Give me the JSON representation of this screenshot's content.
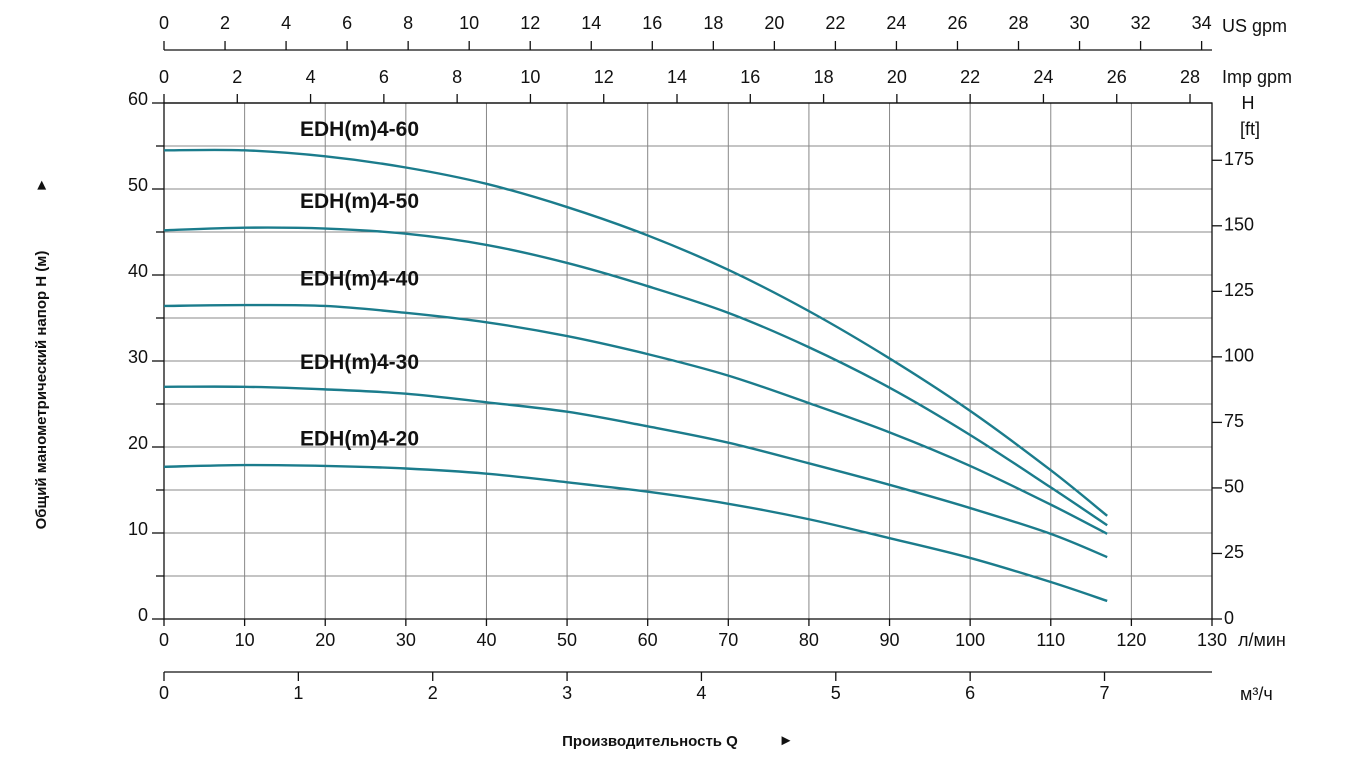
{
  "chart_data": {
    "type": "line",
    "xlabel": "Производительность Q",
    "ylabel": "Общий манометрический напор H (м)",
    "xunit": "л/мин",
    "xlim": [
      0,
      130
    ],
    "xticks": [
      0,
      10,
      20,
      30,
      40,
      50,
      60,
      70,
      80,
      90,
      100,
      110,
      120,
      130
    ],
    "ylim": [
      0,
      60
    ],
    "yticks": [
      0,
      10,
      20,
      30,
      40,
      50,
      60
    ],
    "y_minor_ticks": [
      5,
      15,
      25,
      35,
      45,
      55
    ],
    "grid": true,
    "y2label": "H",
    "y2unit": "[ft]",
    "y2lim": [
      0,
      196.85
    ],
    "y2ticks": [
      0,
      25,
      50,
      75,
      100,
      125,
      150,
      175
    ],
    "x_axes": [
      {
        "label": "US gpm",
        "lim": [
          0,
          34.34
        ],
        "ticks": [
          0,
          2,
          4,
          6,
          8,
          10,
          12,
          14,
          16,
          18,
          20,
          22,
          24,
          26,
          28,
          30,
          32,
          34
        ]
      },
      {
        "label": "Imp gpm",
        "lim": [
          0,
          28.6
        ],
        "ticks": [
          0,
          2,
          4,
          6,
          8,
          10,
          12,
          14,
          16,
          18,
          20,
          22,
          24,
          26,
          28
        ]
      },
      {
        "label": "м³/ч",
        "lim": [
          0,
          7.8
        ],
        "ticks": [
          0,
          1,
          2,
          3,
          4,
          5,
          6,
          7
        ]
      }
    ],
    "x": [
      0,
      10,
      20,
      30,
      40,
      50,
      60,
      70,
      80,
      90,
      100,
      110,
      117
    ],
    "series": [
      {
        "name": "EDH(m)4-60",
        "color": "#1b7c8c",
        "values": [
          54.5,
          54.5,
          53.8,
          52.5,
          50.6,
          47.9,
          44.6,
          40.6,
          35.8,
          30.3,
          24.2,
          17.3,
          12.0
        ]
      },
      {
        "name": "EDH(m)4-50",
        "color": "#1b7c8c",
        "values": [
          45.2,
          45.5,
          45.4,
          44.8,
          43.5,
          41.4,
          38.7,
          35.6,
          31.6,
          26.9,
          21.4,
          15.3,
          10.9
        ]
      },
      {
        "name": "EDH(m)4-40",
        "color": "#1b7c8c",
        "values": [
          36.4,
          36.5,
          36.4,
          35.6,
          34.5,
          32.9,
          30.8,
          28.3,
          25.1,
          21.7,
          17.8,
          13.3,
          9.9
        ]
      },
      {
        "name": "EDH(m)4-30",
        "color": "#1b7c8c",
        "values": [
          27.0,
          27.0,
          26.7,
          26.2,
          25.2,
          24.1,
          22.4,
          20.5,
          18.1,
          15.6,
          12.9,
          9.9,
          7.2
        ]
      },
      {
        "name": "EDH(m)4-20",
        "color": "#1b7c8c",
        "values": [
          17.7,
          17.9,
          17.8,
          17.5,
          16.9,
          15.9,
          14.8,
          13.4,
          11.6,
          9.4,
          7.1,
          4.3,
          2.1
        ]
      }
    ]
  }
}
